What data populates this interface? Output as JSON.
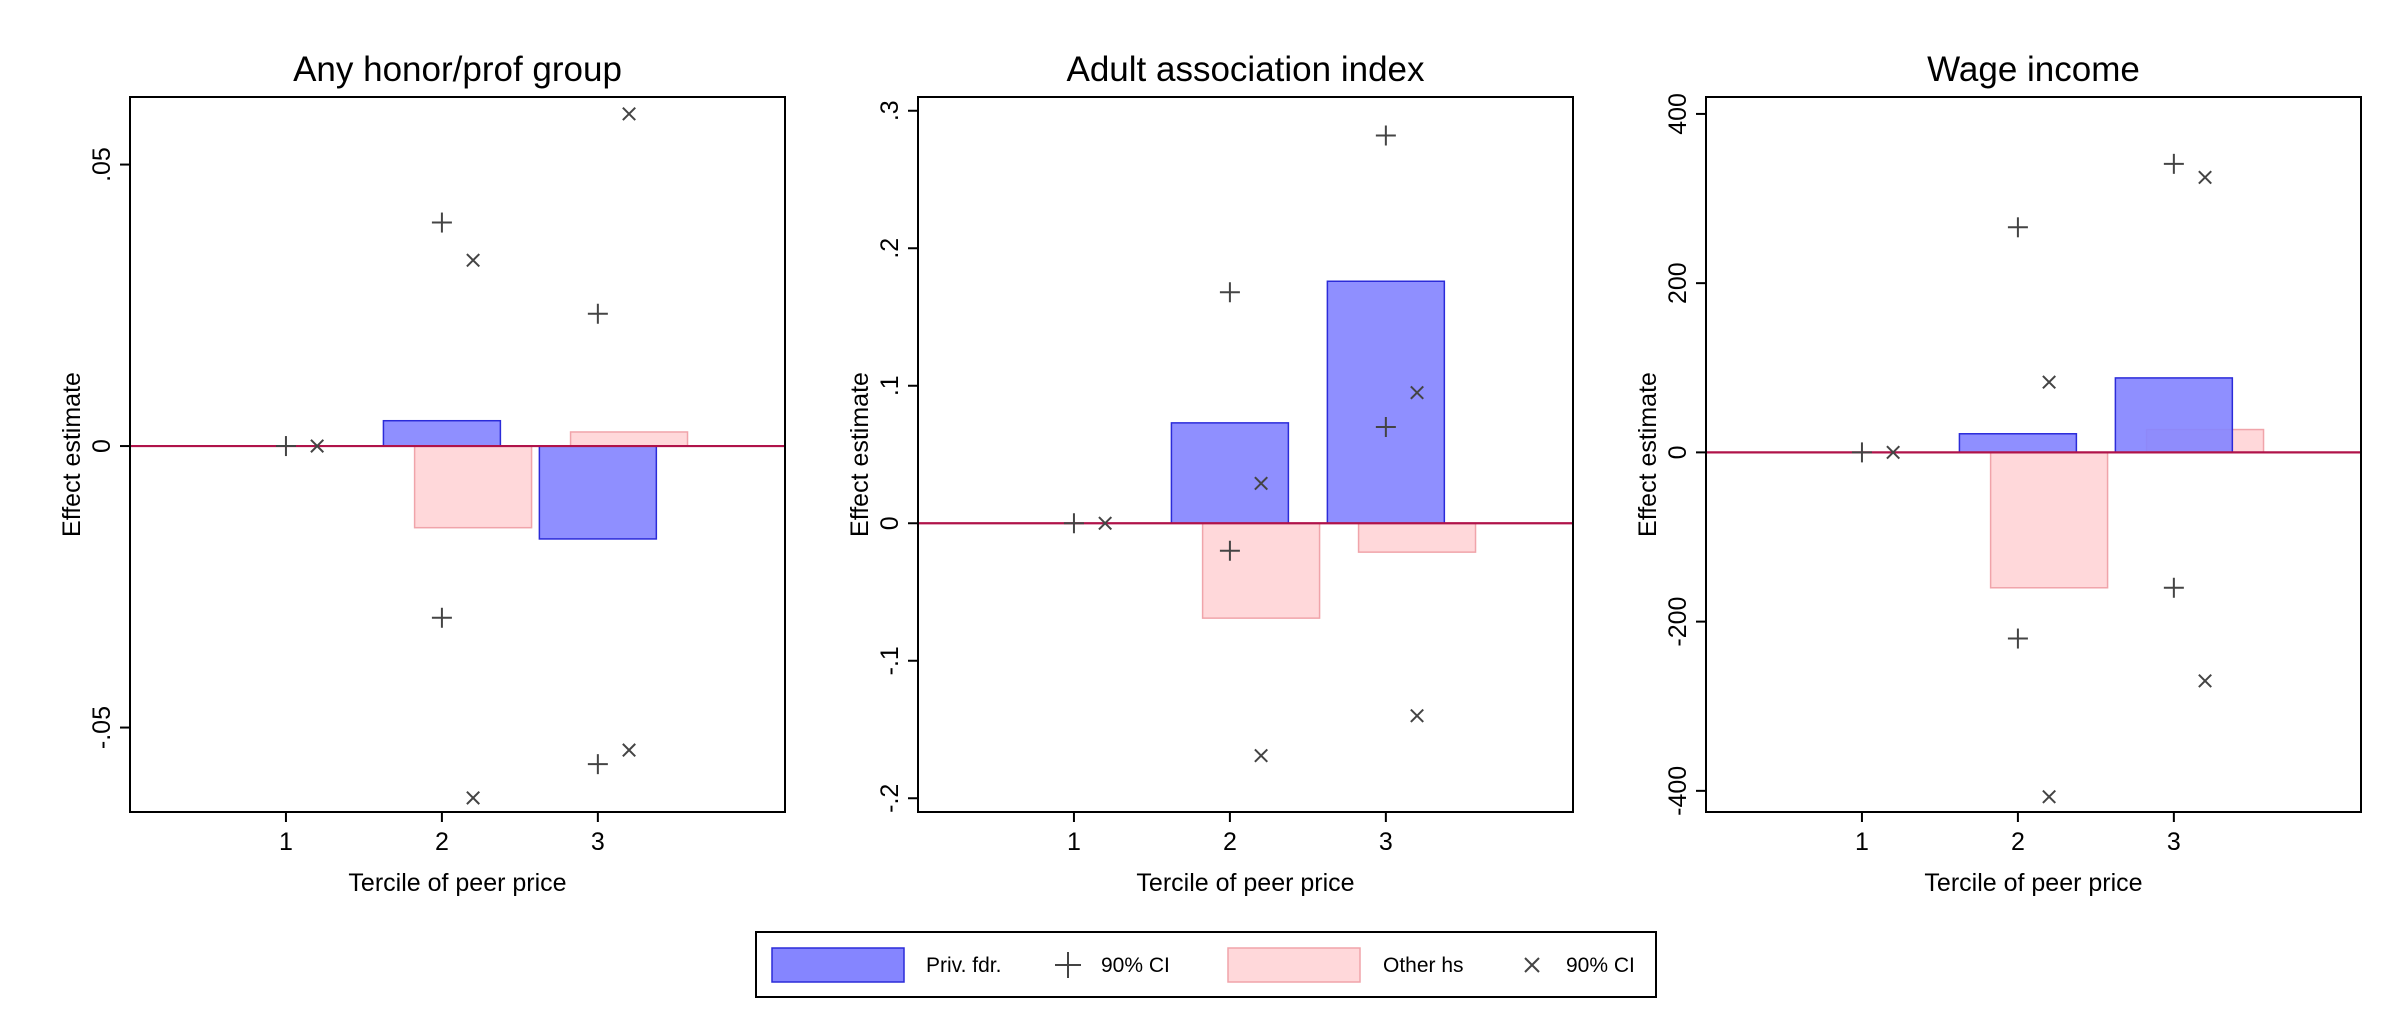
{
  "colors": {
    "priv_bar_fill": "#8585ff",
    "priv_bar_stroke": "#2b2bd9",
    "other_bar_fill": "#ffd8da",
    "other_bar_stroke": "#f0a4aa",
    "zero_line": "#b0134a",
    "marker": "#444444"
  },
  "legend": {
    "items": [
      {
        "label": "Priv. fdr.",
        "symbol": "bar",
        "series": "priv"
      },
      {
        "label": "90% CI",
        "symbol": "plus",
        "series": "priv"
      },
      {
        "label": "Other hs",
        "symbol": "bar",
        "series": "other"
      },
      {
        "label": "90% CI",
        "symbol": "cross",
        "series": "other"
      }
    ]
  },
  "chart_data": [
    {
      "type": "bar",
      "title": "Any honor/prof group",
      "xlabel": "Tercile of peer price",
      "ylabel": "Effect estimate",
      "xlim": [
        0,
        4.2
      ],
      "ylim": [
        -0.065,
        0.062
      ],
      "yticks": [
        {
          "value": -0.05,
          "label": "-.05"
        },
        {
          "value": 0,
          "label": "0"
        },
        {
          "value": 0.05,
          "label": ".05"
        }
      ],
      "xticks": [
        {
          "value": 1,
          "label": "1"
        },
        {
          "value": 2,
          "label": "2"
        },
        {
          "value": 3,
          "label": "3"
        }
      ],
      "series": [
        {
          "name": "Priv. fdr.",
          "x": [
            1,
            2,
            3
          ],
          "values": [
            0,
            0.0045,
            -0.0165
          ],
          "ci_low": [
            0,
            -0.0305,
            -0.0565
          ],
          "ci_high": [
            0,
            0.0397,
            0.0235
          ]
        },
        {
          "name": "Other hs",
          "x": [
            1.2,
            2.2,
            3.2
          ],
          "values": [
            0,
            -0.0145,
            0.0025
          ],
          "ci_low": [
            0,
            -0.0625,
            -0.054
          ],
          "ci_high": [
            0,
            0.033,
            0.059
          ]
        }
      ]
    },
    {
      "type": "bar",
      "title": "Adult association index",
      "xlabel": "Tercile of peer price",
      "ylabel": "Effect estimate",
      "xlim": [
        0,
        4.2
      ],
      "ylim": [
        -0.21,
        0.31
      ],
      "yticks": [
        {
          "value": -0.2,
          "label": "-.2"
        },
        {
          "value": -0.1,
          "label": "-.1"
        },
        {
          "value": 0,
          "label": "0"
        },
        {
          "value": 0.1,
          "label": ".1"
        },
        {
          "value": 0.2,
          "label": ".2"
        },
        {
          "value": 0.3,
          "label": ".3"
        }
      ],
      "xticks": [
        {
          "value": 1,
          "label": "1"
        },
        {
          "value": 2,
          "label": "2"
        },
        {
          "value": 3,
          "label": "3"
        }
      ],
      "series": [
        {
          "name": "Priv. fdr.",
          "x": [
            1,
            2,
            3
          ],
          "values": [
            0,
            0.073,
            0.176
          ],
          "ci_low": [
            0,
            -0.02,
            0.07
          ],
          "ci_high": [
            0,
            0.168,
            0.282
          ]
        },
        {
          "name": "Other hs",
          "x": [
            1.2,
            2.2,
            3.2
          ],
          "values": [
            0,
            -0.069,
            -0.021
          ],
          "ci_low": [
            0,
            -0.169,
            -0.14
          ],
          "ci_high": [
            0,
            0.029,
            0.095
          ]
        }
      ]
    },
    {
      "type": "bar",
      "title": "Wage income",
      "xlabel": "Tercile of peer price",
      "ylabel": "Effect estimate",
      "xlim": [
        0,
        4.2
      ],
      "ylim": [
        -425,
        420
      ],
      "yticks": [
        {
          "value": -400,
          "label": "-400"
        },
        {
          "value": -200,
          "label": "-200"
        },
        {
          "value": 0,
          "label": "0"
        },
        {
          "value": 200,
          "label": "200"
        },
        {
          "value": 400,
          "label": "400"
        }
      ],
      "xticks": [
        {
          "value": 1,
          "label": "1"
        },
        {
          "value": 2,
          "label": "2"
        },
        {
          "value": 3,
          "label": "3"
        }
      ],
      "series": [
        {
          "name": "Priv. fdr.",
          "x": [
            1,
            2,
            3
          ],
          "values": [
            0,
            22,
            88
          ],
          "ci_low": [
            0,
            -220,
            -160
          ],
          "ci_high": [
            0,
            266,
            341
          ]
        },
        {
          "name": "Other hs",
          "x": [
            1.2,
            2.2,
            3.2
          ],
          "values": [
            0,
            -160,
            27
          ],
          "ci_low": [
            0,
            -407,
            -270
          ],
          "ci_high": [
            0,
            83,
            325
          ]
        }
      ]
    }
  ]
}
